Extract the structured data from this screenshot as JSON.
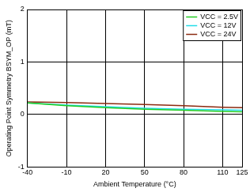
{
  "chart_data": {
    "type": "line",
    "x_label": "Ambient Temperature (°C)",
    "y_label": "Operating Point Symmetry BSYM_OP (mT)",
    "x": [
      -40,
      -10,
      20,
      50,
      80,
      110,
      125
    ],
    "series": [
      {
        "name": "VCC = 2.5V",
        "color": "#22cc22",
        "values": [
          0.22,
          0.17,
          0.13,
          0.1,
          0.08,
          0.06,
          0.05
        ]
      },
      {
        "name": "VCC = 12V",
        "color": "#22dde8",
        "values": [
          0.22,
          0.18,
          0.15,
          0.12,
          0.1,
          0.09,
          0.08
        ]
      },
      {
        "name": "VCC = 24V",
        "color": "#8b2a10",
        "values": [
          0.24,
          0.23,
          0.21,
          0.19,
          0.17,
          0.14,
          0.13
        ]
      }
    ],
    "xlim": [
      -40,
      125
    ],
    "xticks": [
      -40,
      -10,
      20,
      50,
      80,
      110,
      125
    ],
    "ylim": [
      -1,
      2
    ],
    "yticks": [
      -1,
      0,
      1,
      2
    ],
    "grid": true,
    "legend": "top-right"
  }
}
